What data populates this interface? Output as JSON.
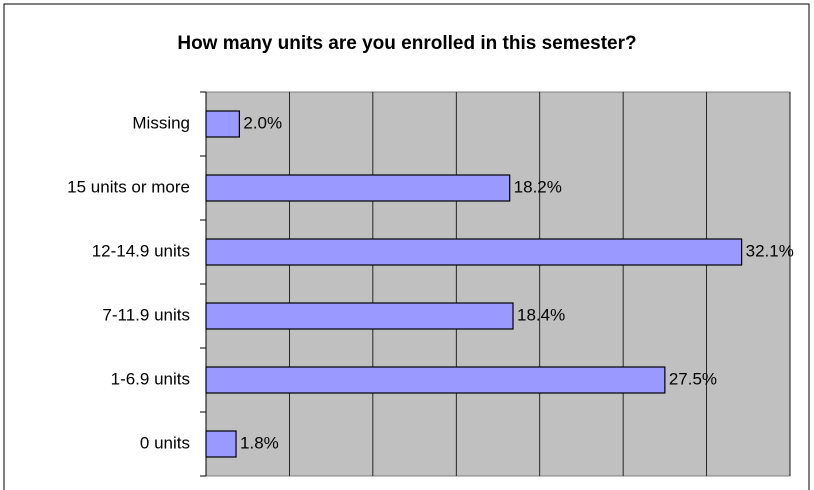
{
  "chart_data": {
    "type": "bar",
    "orientation": "horizontal",
    "title": "How many units are you enrolled in this semester?",
    "categories": [
      "Missing",
      "15 units or more",
      "12-14.9 units",
      "7-11.9 units",
      "1-6.9 units",
      "0 units"
    ],
    "values": [
      2.0,
      18.2,
      32.1,
      18.4,
      27.5,
      1.8
    ],
    "value_labels": [
      "2.0%",
      "18.2%",
      "32.1%",
      "18.4%",
      "27.5%",
      "1.8%"
    ],
    "color": "#9999ff",
    "xlim": [
      0,
      35
    ],
    "xticks": [
      0,
      5,
      10,
      15,
      20,
      25,
      30,
      35
    ],
    "grid": true
  }
}
